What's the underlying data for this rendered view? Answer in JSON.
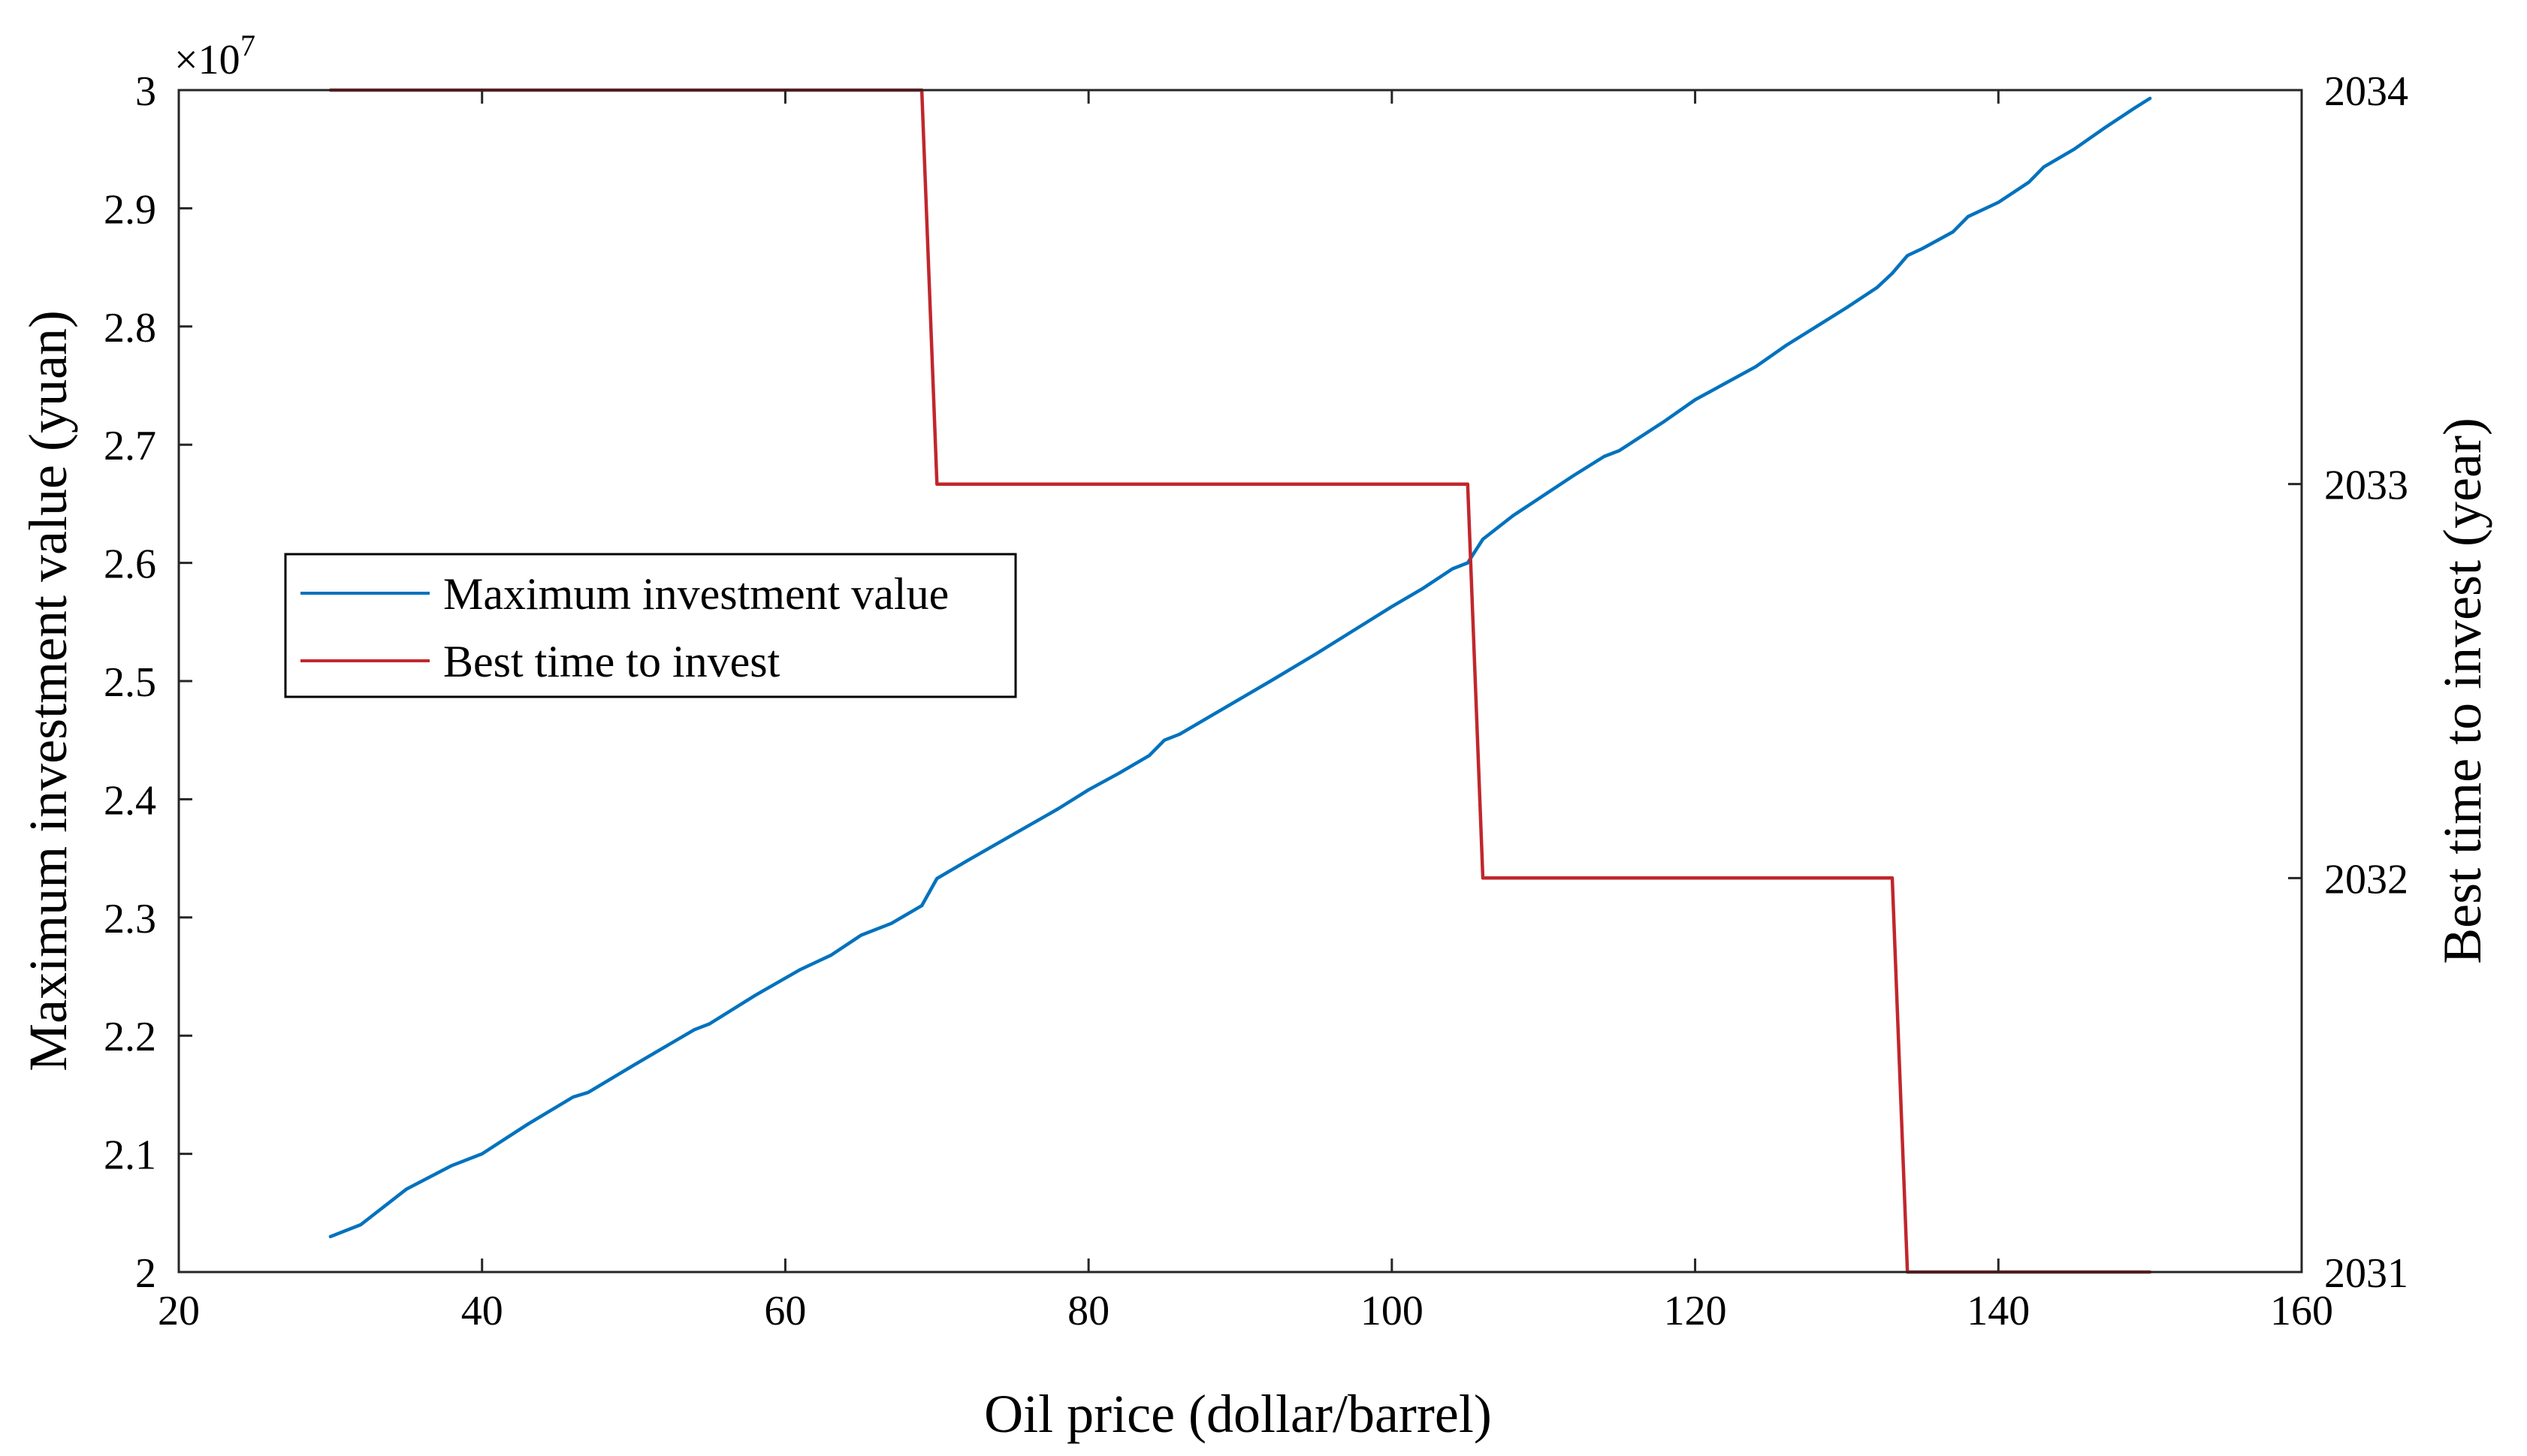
{
  "chart_data": {
    "type": "line",
    "xlabel": "Oil price (dollar/barrel)",
    "ylabel_left": "Maximum investment value (yuan)",
    "ylabel_right": "Best time to invest (year)",
    "y_left_multiplier": "×10",
    "y_left_multiplier_exp": "7",
    "xlim": [
      20,
      160
    ],
    "ylim_left": [
      2.0,
      3.0
    ],
    "ylim_right": [
      2031,
      2034
    ],
    "xticks": [
      "20",
      "40",
      "60",
      "80",
      "100",
      "120",
      "140",
      "160"
    ],
    "yticks_left": [
      "2",
      "2.1",
      "2.2",
      "2.3",
      "2.4",
      "2.5",
      "2.6",
      "2.7",
      "2.8",
      "2.9",
      "3"
    ],
    "yticks_right": [
      "2031",
      "2032",
      "2033",
      "2034"
    ],
    "legend_position": "center-left",
    "grid": false,
    "series": [
      {
        "name": "Maximum investment value",
        "axis": "left",
        "color": "#0072BD",
        "x": [
          30,
          32,
          35,
          38,
          40,
          43,
          46,
          47,
          50,
          52,
          54,
          55,
          58,
          61,
          62,
          63,
          65,
          67,
          69,
          70,
          72,
          75,
          78,
          80,
          82,
          84,
          85,
          86,
          88,
          90,
          92,
          95,
          98,
          100,
          102,
          104,
          105,
          106,
          108,
          110,
          112,
          114,
          115,
          118,
          120,
          122,
          124,
          126,
          128,
          130,
          132,
          133,
          134,
          135,
          137,
          138,
          140,
          142,
          143,
          145,
          147,
          149,
          150
        ],
        "y": [
          2.03,
          2.04,
          2.07,
          2.09,
          2.1,
          2.125,
          2.148,
          2.152,
          2.175,
          2.19,
          2.205,
          2.21,
          2.234,
          2.256,
          2.262,
          2.268,
          2.285,
          2.295,
          2.31,
          2.333,
          2.348,
          2.37,
          2.392,
          2.408,
          2.422,
          2.437,
          2.45,
          2.455,
          2.47,
          2.485,
          2.5,
          2.523,
          2.547,
          2.563,
          2.578,
          2.595,
          2.6,
          2.62,
          2.64,
          2.657,
          2.674,
          2.69,
          2.695,
          2.72,
          2.738,
          2.752,
          2.766,
          2.784,
          2.8,
          2.816,
          2.833,
          2.845,
          2.86,
          2.866,
          2.88,
          2.893,
          2.905,
          2.922,
          2.935,
          2.95,
          2.968,
          2.985,
          2.993
        ]
      },
      {
        "name": "Best time to invest",
        "axis": "right",
        "color": "#C0272D",
        "x": [
          30,
          69,
          70,
          105,
          106,
          133,
          134,
          150
        ],
        "y": [
          2034,
          2034,
          2033,
          2033,
          2032,
          2032,
          2031,
          2031
        ]
      }
    ]
  }
}
